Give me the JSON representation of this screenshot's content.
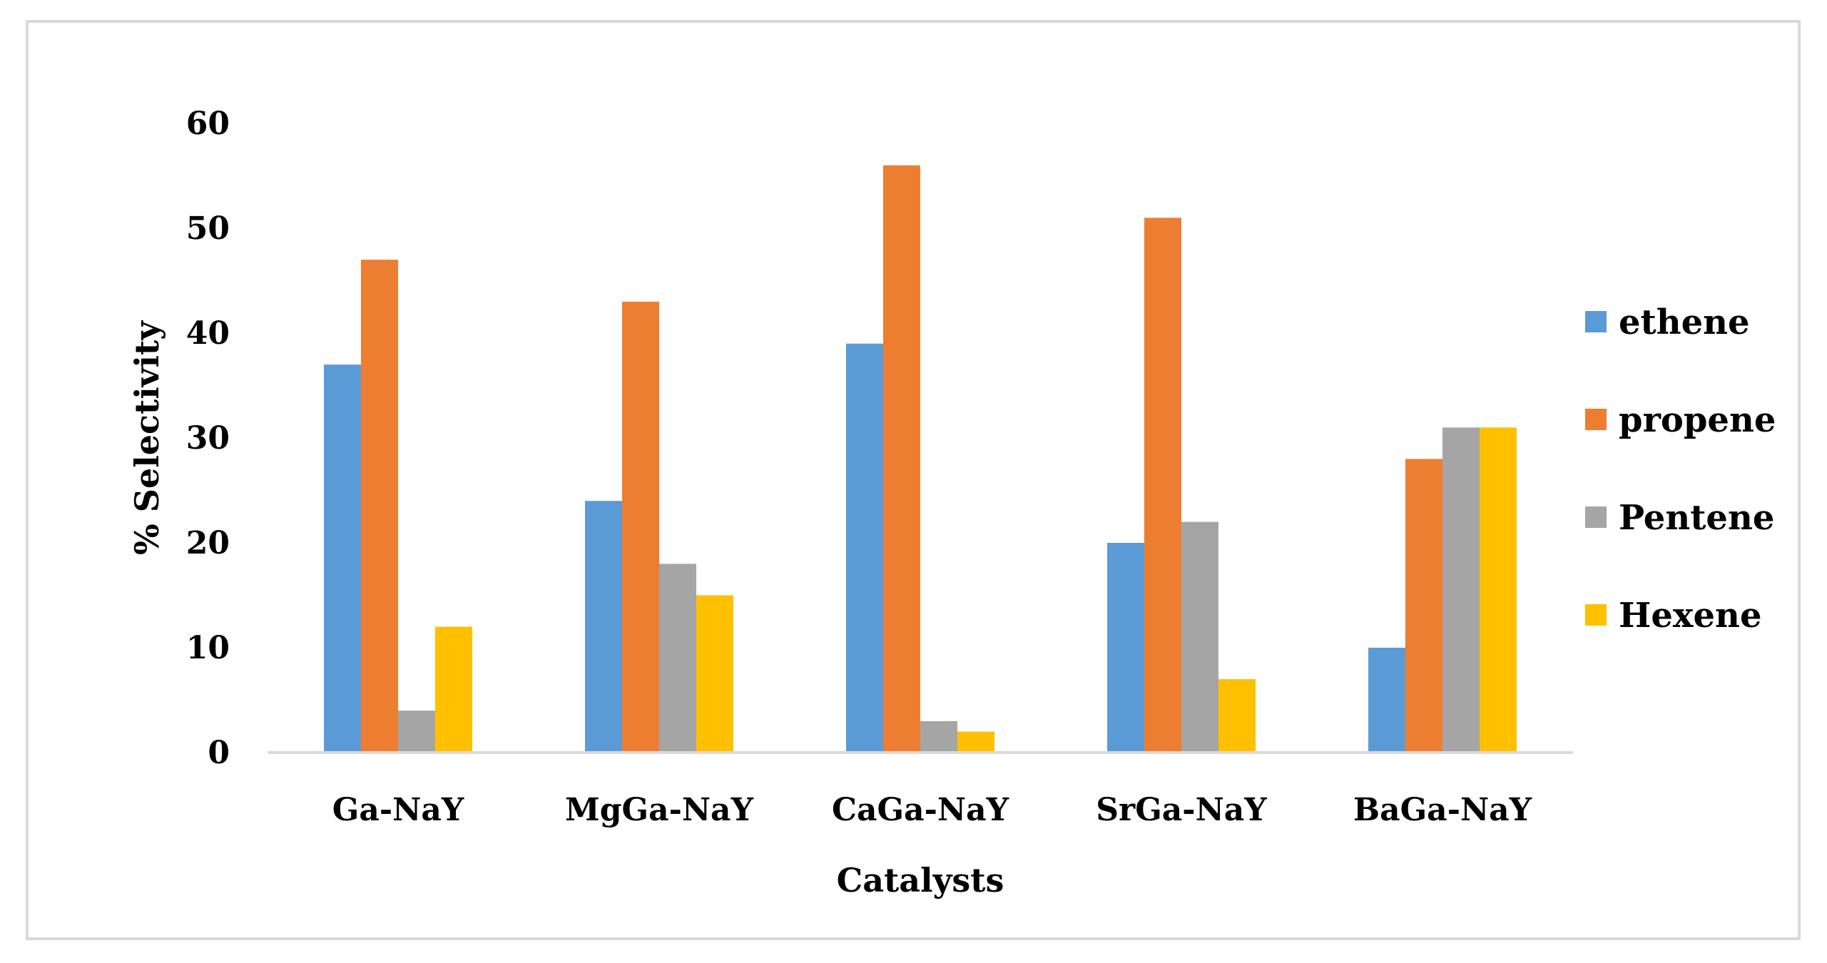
{
  "chart_data": {
    "type": "bar",
    "title": "",
    "xlabel": "Catalysts",
    "ylabel": "% Selectivity",
    "ylim": [
      0,
      60
    ],
    "yticks": [
      0,
      10,
      20,
      30,
      40,
      50,
      60
    ],
    "grid": false,
    "legend_position": "right",
    "categories": [
      "Ga-NaY",
      "MgGa-NaY",
      "CaGa-NaY",
      "SrGa-NaY",
      "BaGa-NaY"
    ],
    "series": [
      {
        "name": "ethene",
        "color": "#5b9bd5",
        "values": [
          37,
          24,
          39,
          20,
          10
        ]
      },
      {
        "name": "propene",
        "color": "#ed7d31",
        "values": [
          47,
          43,
          56,
          51,
          28
        ]
      },
      {
        "name": "Pentene",
        "color": "#a5a5a5",
        "values": [
          4,
          18,
          3,
          22,
          31
        ]
      },
      {
        "name": "Hexene",
        "color": "#ffc000",
        "values": [
          12,
          15,
          2,
          7,
          31
        ]
      }
    ]
  }
}
